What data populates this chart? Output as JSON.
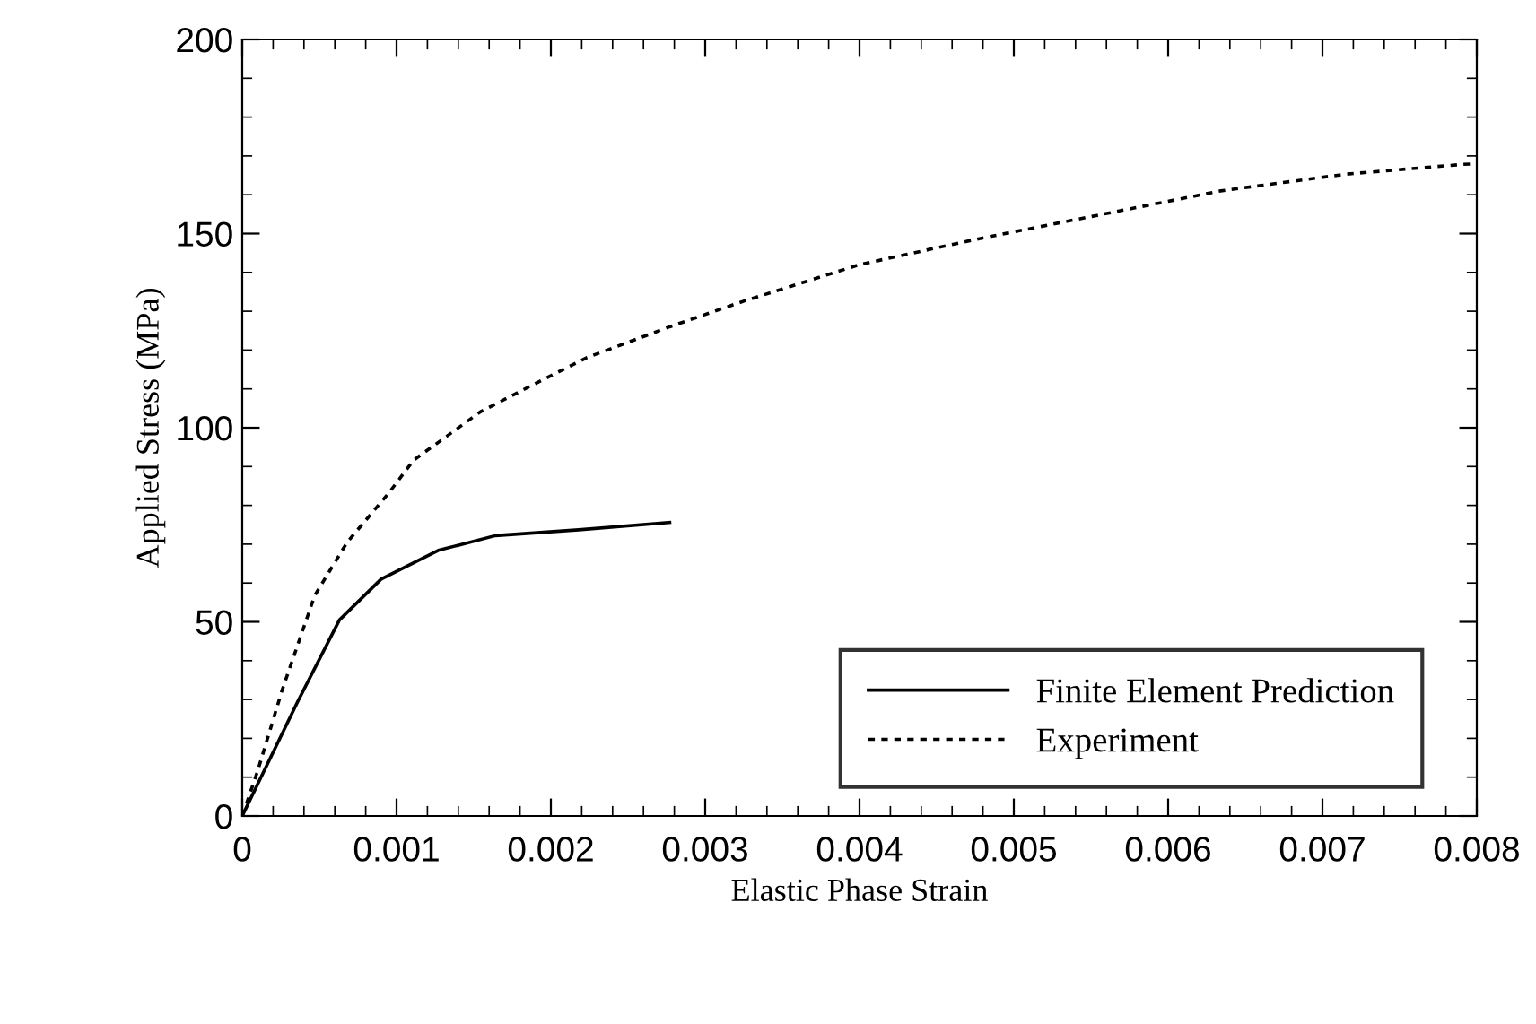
{
  "chart_data": {
    "type": "line",
    "xlabel": "Elastic Phase Strain",
    "ylabel": "Applied Stress (MPa)",
    "xlim": [
      0,
      0.008
    ],
    "ylim": [
      0,
      200
    ],
    "xticks": [
      0,
      0.001,
      0.002,
      0.003,
      0.004,
      0.005,
      0.006,
      0.007,
      0.008
    ],
    "yticks": [
      0,
      50,
      100,
      150,
      200
    ],
    "grid": false,
    "legend": "bottom right",
    "series": [
      {
        "name": "Finite Element Prediction",
        "color": "#000000",
        "line_style": "solid",
        "x": [
          0,
          0.00036,
          0.00063,
          0.0009,
          0.00127,
          0.00164,
          0.00218,
          0.00277
        ],
        "values": [
          0,
          29.5,
          50.5,
          61,
          68.4,
          72.2,
          73.7,
          75.6
        ]
      },
      {
        "name": "Experiment",
        "color": "#000000",
        "line_style": "dotted",
        "x": [
          0,
          0.0001,
          0.00026,
          0.00047,
          0.00068,
          0.00095,
          0.00111,
          0.00154,
          0.00191,
          0.00223,
          0.00277,
          0.00325,
          0.004,
          0.00474,
          0.00554,
          0.00634,
          0.00715,
          0.0079,
          0.008
        ],
        "values": [
          0,
          11.6,
          32.6,
          56.8,
          70.5,
          83.2,
          91.6,
          104,
          111.6,
          118,
          126,
          132.6,
          142,
          148.4,
          154.7,
          161,
          165.3,
          167.8,
          168
        ]
      }
    ]
  }
}
